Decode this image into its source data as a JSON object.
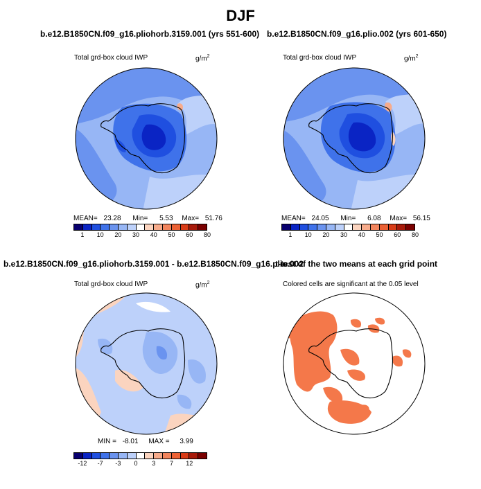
{
  "title": "DJF",
  "panels": {
    "p1": {
      "title": "b.e12.B1850CN.f09_g16.pliohorb.3159.001 (yrs 551-600)",
      "left_label": "Total grd-box cloud IWP",
      "unit_base": "g/m",
      "unit_exp": "2",
      "mean_label": "MEAN=",
      "mean_value": "23.28",
      "min_label": "Min=",
      "min_value": "5.53",
      "max_label": "Max=",
      "max_value": "51.76"
    },
    "p2": {
      "title": "b.e12.B1850CN.f09_g16.plio.002 (yrs 601-650)",
      "left_label": "Total grd-box cloud IWP",
      "unit_base": "g/m",
      "unit_exp": "2",
      "mean_label": "MEAN=",
      "mean_value": "24.05",
      "min_label": "Min=",
      "min_value": "6.08",
      "max_label": "Max=",
      "max_value": "56.15"
    },
    "p3": {
      "title": "b.e12.B1850CN.f09_g16.pliohorb.3159.001 - b.e12.B1850CN.f09_g16.plio.002",
      "left_label": "Total grd-box cloud IWP",
      "unit_base": "g/m",
      "unit_exp": "2",
      "min_label": "MIN =",
      "min_value": "-8.01",
      "max_label": "MAX =",
      "max_value": "3.99"
    },
    "p4": {
      "title": "t-test of the two means at each grid point",
      "subtitle": "Colored cells are significant at the 0.05 level"
    }
  },
  "colors": {
    "abs_scale": [
      "#08006e",
      "#0a24c4",
      "#1f4fe0",
      "#3f72ea",
      "#6a93ef",
      "#97b6f5",
      "#bdd1fa",
      "#ffffff",
      "#fbd4bf",
      "#f7ab8b",
      "#f2845c",
      "#ec6134",
      "#d93c17",
      "#a81a0a",
      "#7a0000"
    ],
    "diff_scale": [
      "#08006e",
      "#0a24c4",
      "#1f4fe0",
      "#3f72ea",
      "#6a93ef",
      "#97b6f5",
      "#bdd1fa",
      "#ffffff",
      "#fbd4bf",
      "#f7ab8b",
      "#f2845c",
      "#ec6134",
      "#d93c17",
      "#a81a0a",
      "#7a0000"
    ],
    "significance": "#f4784a"
  },
  "chart_data": [
    {
      "type": "heatmap",
      "title": "b.e12.B1850CN.f09_g16.pliohorb.3159.001 (yrs 551-600)",
      "variable": "Total grd-box cloud IWP",
      "units": "g/m^2",
      "projection": "south polar stereographic",
      "colorbar_ticks": [
        "1",
        "10",
        "20",
        "30",
        "40",
        "50",
        "60",
        "80"
      ],
      "stats": {
        "mean": 23.28,
        "min": 5.53,
        "max": 51.76
      }
    },
    {
      "type": "heatmap",
      "title": "b.e12.B1850CN.f09_g16.plio.002 (yrs 601-650)",
      "variable": "Total grd-box cloud IWP",
      "units": "g/m^2",
      "projection": "south polar stereographic",
      "colorbar_ticks": [
        "1",
        "10",
        "20",
        "30",
        "40",
        "50",
        "60",
        "80"
      ],
      "stats": {
        "mean": 24.05,
        "min": 6.08,
        "max": 56.15
      }
    },
    {
      "type": "heatmap",
      "title": "b.e12.B1850CN.f09_g16.pliohorb.3159.001 - b.e12.B1850CN.f09_g16.plio.002",
      "variable": "Total grd-box cloud IWP",
      "units": "g/m^2",
      "projection": "south polar stereographic",
      "colorbar_ticks": [
        "-12",
        "-7",
        "-3",
        "0",
        "3",
        "7",
        "12"
      ],
      "stats": {
        "min": -8.01,
        "max": 3.99
      }
    },
    {
      "type": "heatmap",
      "title": "t-test of the two means at each grid point",
      "subtitle": "Colored cells are significant at the 0.05 level",
      "projection": "south polar stereographic"
    }
  ]
}
